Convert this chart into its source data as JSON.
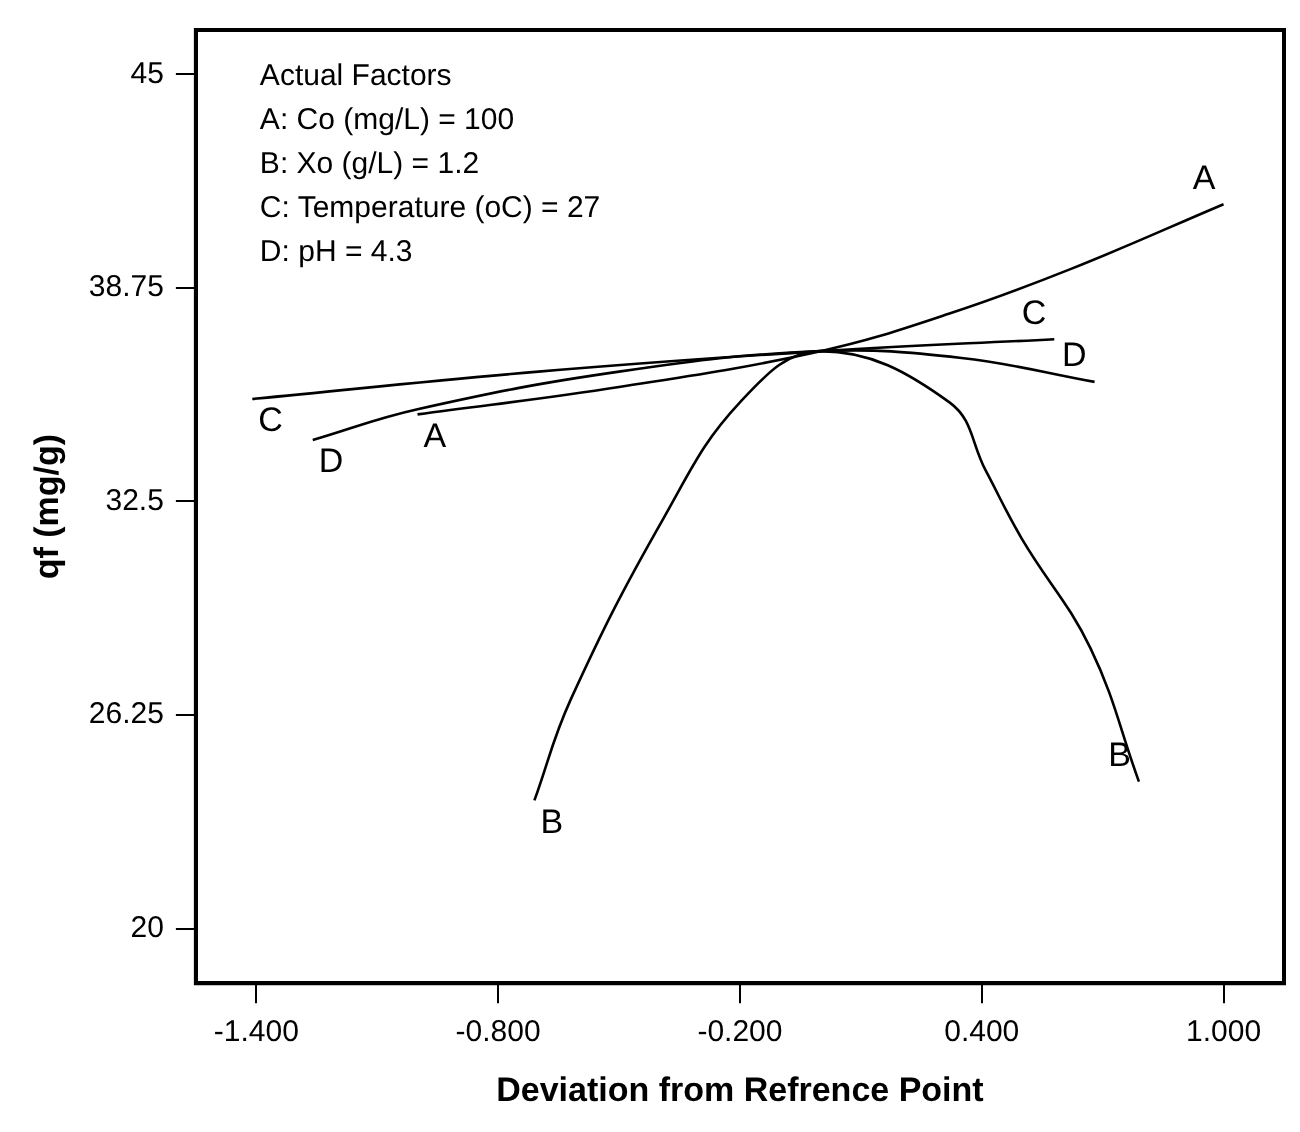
{
  "chart_data": {
    "type": "line",
    "xlabel": "Deviation from Refrence Point",
    "ylabel": "qf (mg/g)",
    "annotations": [
      "Actual Factors",
      "A: Co (mg/L) = 100",
      "B: Xo (g/L) = 1.2",
      "C: Temperature (oC) = 27",
      "D: pH = 4.3"
    ],
    "xlim": [
      -1.55,
      1.15
    ],
    "ylim": [
      18.4,
      46.3
    ],
    "xticks": [
      {
        "value": -1.4,
        "label": "-1.400"
      },
      {
        "value": -0.8,
        "label": "-0.800"
      },
      {
        "value": -0.2,
        "label": "-0.200"
      },
      {
        "value": 0.4,
        "label": "0.400"
      },
      {
        "value": 1.0,
        "label": "1.000"
      }
    ],
    "yticks": [
      20,
      26.25,
      32.5,
      38.75,
      45
    ],
    "marker": "none",
    "legend": false,
    "series": [
      {
        "name": "A",
        "color": "#000000",
        "x": [
          -1.0,
          -0.5,
          0,
          0.32,
          0.62,
          1.0
        ],
        "values": [
          35.05,
          35.85,
          36.9,
          38.0,
          39.3,
          41.2
        ]
      },
      {
        "name": "B",
        "color": "#000000",
        "x": [
          -0.71,
          -0.62,
          -0.39,
          -0.2,
          0,
          0.32,
          0.41,
          0.5,
          0.67,
          0.79
        ],
        "values": [
          23.75,
          26.7,
          32.0,
          35.4,
          36.9,
          35.4,
          33.4,
          31.4,
          28.2,
          24.3
        ]
      },
      {
        "name": "C",
        "color": "#000000",
        "x": [
          -1.41,
          -0.7,
          0,
          0.58
        ],
        "values": [
          35.5,
          36.3,
          36.9,
          37.25
        ]
      },
      {
        "name": "D",
        "color": "#000000",
        "x": [
          -1.26,
          -1.0,
          -0.5,
          0,
          0.35,
          0.68
        ],
        "values": [
          34.3,
          35.2,
          36.3,
          36.9,
          36.7,
          36.0
        ]
      }
    ]
  }
}
